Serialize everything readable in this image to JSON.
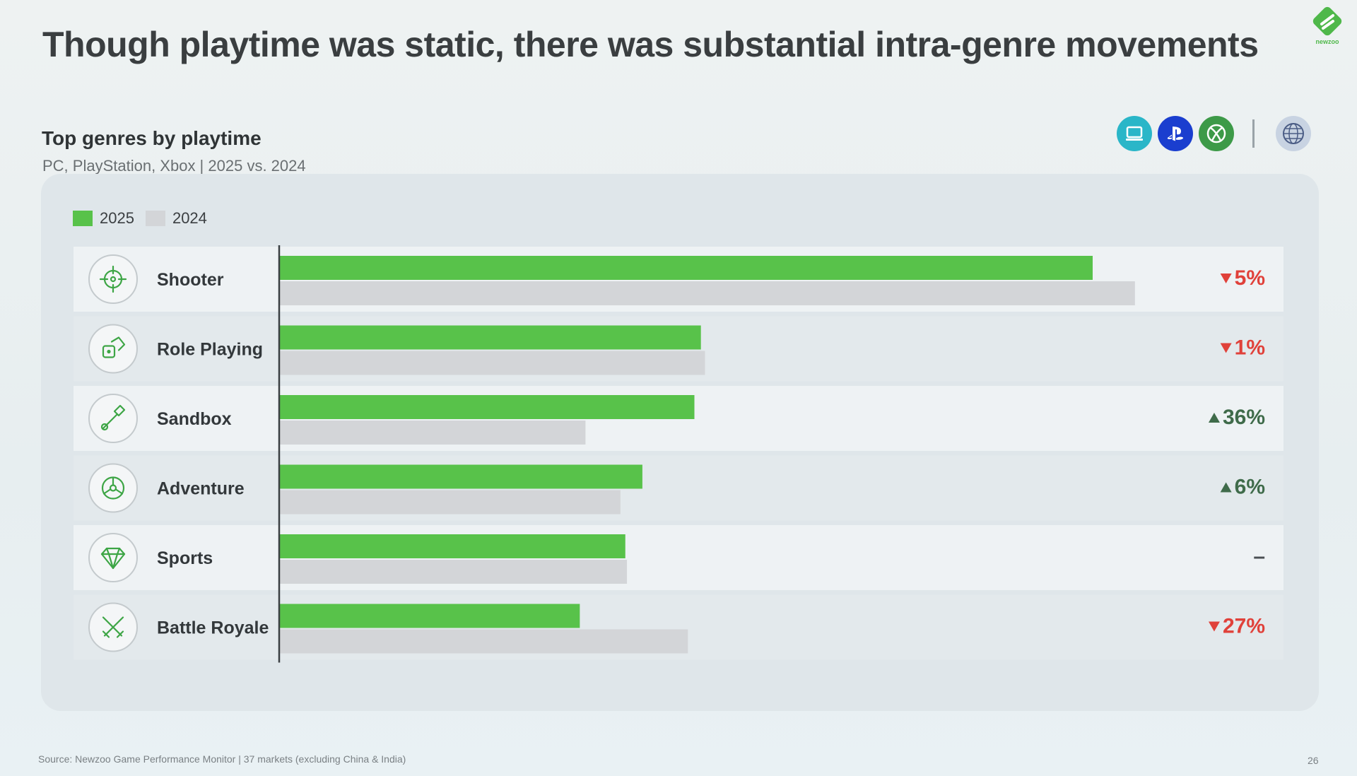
{
  "headline": "Though playtime was static, there was substantial intra-genre movements",
  "logo_text": "newzoo",
  "platform_icons": [
    "pc-icon",
    "playstation-icon",
    "xbox-icon",
    "globe-icon"
  ],
  "footer": {
    "source": "Source: Newzoo Game Performance Monitor | 37 markets (excluding China & India)",
    "page_number": "26"
  },
  "colors": {
    "series_2025": "#58c24a",
    "series_2024": "#d3d5d8",
    "down": "#e0413a",
    "up": "#3f6b4a"
  },
  "chart_data": {
    "type": "bar",
    "orientation": "horizontal",
    "title": "Top genres by playtime",
    "subtitle": "PC, PlayStation, Xbox | 2025 vs. 2024",
    "legend": [
      "2025",
      "2024"
    ],
    "legend_position": "top-left",
    "grid": false,
    "categories": [
      "Shooter",
      "Role Playing",
      "Sandbox",
      "Adventure",
      "Sports",
      "Battle Royale"
    ],
    "category_icons": [
      "crosshair-icon",
      "dice-icon",
      "shovel-icon",
      "steering-wheel-icon",
      "gem-icon",
      "crossed-swords-icon"
    ],
    "series": [
      {
        "name": "2025",
        "values": [
          100,
          51.8,
          51.0,
          44.6,
          42.5,
          36.9
        ]
      },
      {
        "name": "2024",
        "values": [
          105.2,
          52.3,
          37.6,
          41.9,
          42.7,
          50.2
        ]
      }
    ],
    "xlim": [
      0,
      120
    ],
    "change_labels": [
      "5%",
      "1%",
      "36%",
      "6%",
      "–",
      "27%"
    ],
    "change_direction": [
      "down",
      "down",
      "up",
      "up",
      "flat",
      "down"
    ]
  }
}
